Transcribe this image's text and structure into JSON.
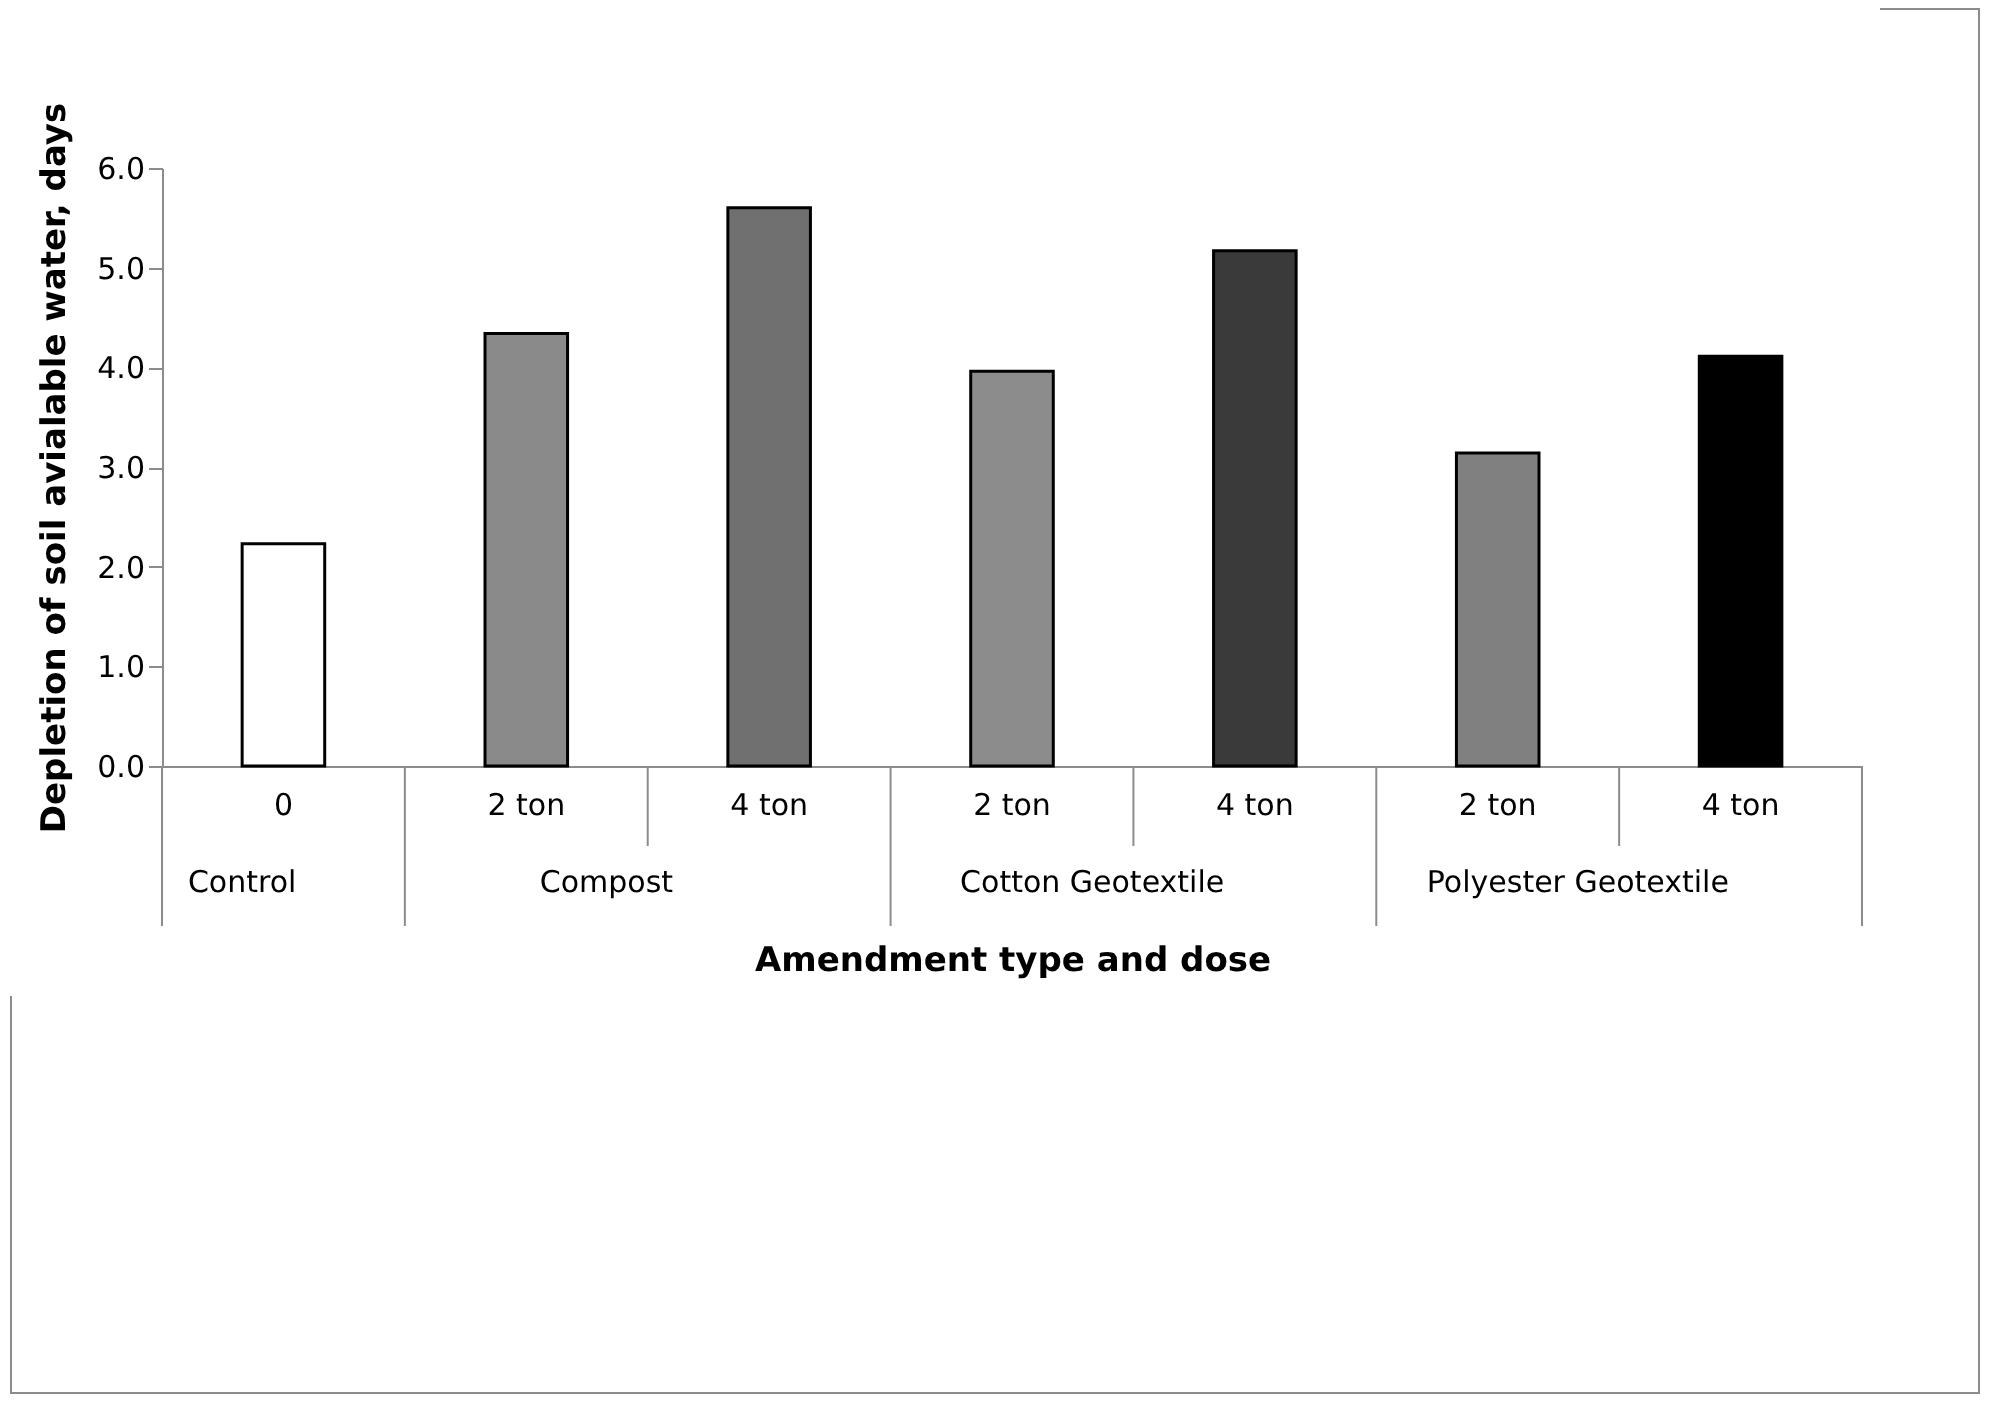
{
  "chart_data": {
    "type": "bar",
    "xlabel": "Amendment type and dose",
    "ylabel": "Depletion of soil avialable water, days",
    "categories": [
      "0",
      "2 ton",
      "4 ton",
      "2 ton",
      "4 ton",
      "2 ton",
      "4 ton"
    ],
    "values": [
      2.23,
      4.34,
      5.6,
      3.96,
      5.17,
      3.14,
      4.11
    ],
    "colors": [
      "#ffffff",
      "#8a8a8a",
      "#707070",
      "#8c8c8c",
      "#3a3a3a",
      "#808080",
      "#000000"
    ],
    "ylim": [
      0,
      6
    ],
    "yticks": [
      {
        "value": 0,
        "label": "0.0"
      },
      {
        "value": 1,
        "label": "1.0"
      },
      {
        "value": 2,
        "label": "2.0"
      },
      {
        "value": 3,
        "label": "3.0"
      },
      {
        "value": 4,
        "label": "4.0"
      },
      {
        "value": 5,
        "label": "5.0"
      },
      {
        "value": 6,
        "label": "6.0"
      }
    ],
    "annotations": [
      "Control",
      "Compost",
      "Cotton Geotextile",
      "Polyester Geotextile"
    ],
    "grid": false
  }
}
